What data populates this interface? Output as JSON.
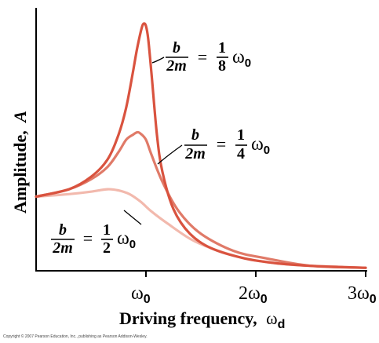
{
  "chart_data": {
    "type": "line",
    "xlabel_main": "Driving frequency,",
    "xlabel_symbol": "ω",
    "xlabel_subscript": "d",
    "ylabel_main": "Amplitude,",
    "ylabel_symbol": "A",
    "x_ticks": [
      {
        "value": 1,
        "symbol": "ω",
        "sub": "0"
      },
      {
        "value": 2,
        "symbol": "2ω",
        "sub": "0"
      },
      {
        "value": 3,
        "symbol": "3ω",
        "sub": "0"
      }
    ],
    "xlim": [
      0,
      3
    ],
    "ylim": [
      0,
      1
    ],
    "series": [
      {
        "name": "b/2m = ω0/8",
        "color": "#d9533f",
        "label": {
          "num": "b",
          "den": "2m",
          "eq": "=",
          "frac_num": "1",
          "frac_den": "8",
          "omega": "ω",
          "sub": "0"
        },
        "x": [
          0,
          0.3,
          0.5,
          0.65,
          0.75,
          0.82,
          0.88,
          0.92,
          0.96,
          0.98,
          1.0,
          1.02,
          1.05,
          1.1,
          1.15,
          1.25,
          1.4,
          1.6,
          1.9,
          2.2,
          2.5,
          2.8,
          3.0
        ],
        "y": [
          0.3,
          0.33,
          0.38,
          0.45,
          0.55,
          0.66,
          0.8,
          0.9,
          0.98,
          1.0,
          0.99,
          0.94,
          0.8,
          0.55,
          0.4,
          0.25,
          0.15,
          0.09,
          0.05,
          0.03,
          0.02,
          0.015,
          0.012
        ]
      },
      {
        "name": "b/2m = ω0/4",
        "color": "#e07a68",
        "label": {
          "num": "b",
          "den": "2m",
          "eq": "=",
          "frac_num": "1",
          "frac_den": "4",
          "omega": "ω",
          "sub": "0"
        },
        "x": [
          0,
          0.3,
          0.5,
          0.65,
          0.75,
          0.82,
          0.88,
          0.92,
          0.95,
          1.0,
          1.05,
          1.15,
          1.3,
          1.5,
          1.8,
          2.1,
          2.5,
          3.0
        ],
        "y": [
          0.3,
          0.33,
          0.37,
          0.42,
          0.48,
          0.53,
          0.55,
          0.56,
          0.555,
          0.53,
          0.47,
          0.36,
          0.24,
          0.15,
          0.08,
          0.05,
          0.02,
          0.012
        ]
      },
      {
        "name": "b/2m = ω0/2",
        "color": "#f2b9ad",
        "label": {
          "num": "b",
          "den": "2m",
          "eq": "=",
          "frac_num": "1",
          "frac_den": "2",
          "omega": "ω",
          "sub": "0"
        },
        "x": [
          0,
          0.3,
          0.5,
          0.65,
          0.75,
          0.85,
          0.95,
          1.05,
          1.2,
          1.4,
          1.6,
          1.9,
          2.2,
          2.5,
          3.0
        ],
        "y": [
          0.3,
          0.31,
          0.32,
          0.33,
          0.325,
          0.31,
          0.28,
          0.24,
          0.19,
          0.13,
          0.09,
          0.05,
          0.03,
          0.02,
          0.012
        ]
      }
    ]
  },
  "footer": {
    "copyright": "Copyright © 2007 Pearson Education, Inc., publishing as Pearson Addison-Wesley."
  }
}
